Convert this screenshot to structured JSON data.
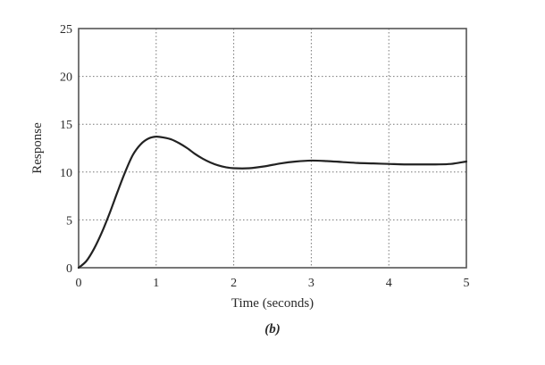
{
  "chart_data": {
    "type": "line",
    "title": "",
    "caption": "(b)",
    "xlabel": "Time (seconds)",
    "ylabel": "Response",
    "xlim": [
      0,
      5
    ],
    "ylim": [
      0,
      25
    ],
    "xticks": [
      "0",
      "1",
      "2",
      "3",
      "4",
      "5"
    ],
    "yticks": [
      "0",
      "5",
      "10",
      "15",
      "20",
      "25"
    ],
    "grid": true,
    "legend": null,
    "series": [
      {
        "name": "Response",
        "x": [
          0,
          0.1,
          0.2,
          0.3,
          0.4,
          0.5,
          0.6,
          0.7,
          0.8,
          0.9,
          1.0,
          1.1,
          1.2,
          1.3,
          1.4,
          1.5,
          1.6,
          1.7,
          1.8,
          1.9,
          2.0,
          2.2,
          2.4,
          2.6,
          2.8,
          3.0,
          3.2,
          3.4,
          3.6,
          3.8,
          4.0,
          4.2,
          4.4,
          4.6,
          4.8,
          5.0
        ],
        "y": [
          0,
          0.7,
          2.0,
          3.7,
          5.7,
          7.9,
          10.0,
          11.8,
          12.9,
          13.5,
          13.7,
          13.6,
          13.4,
          13.0,
          12.5,
          11.9,
          11.4,
          11.0,
          10.7,
          10.5,
          10.4,
          10.4,
          10.6,
          10.9,
          11.1,
          11.2,
          11.15,
          11.05,
          10.95,
          10.9,
          10.85,
          10.8,
          10.8,
          10.8,
          10.85,
          11.1
        ]
      }
    ]
  },
  "axes": {
    "xlabel": "Time (seconds)",
    "ylabel": "Response",
    "caption": "(b)"
  }
}
